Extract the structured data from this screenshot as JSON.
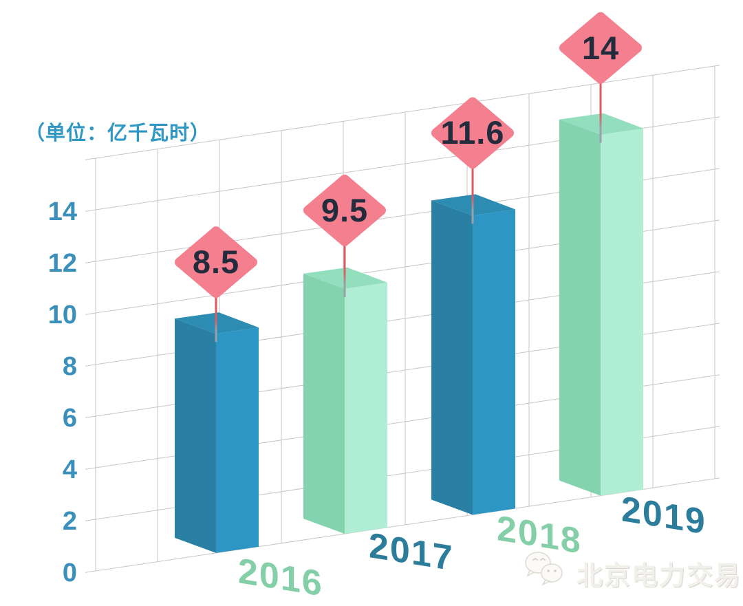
{
  "unit_label": "（单位：亿千瓦时）",
  "watermark": {
    "name": "北京电力交易中心",
    "icon": "wechat-icon"
  },
  "y_axis": {
    "ticks": [
      "14",
      "12",
      "10",
      "8",
      "6",
      "4",
      "2",
      "0"
    ]
  },
  "chart_data": {
    "type": "bar",
    "style": "isometric-3d",
    "title": "",
    "xlabel": "",
    "ylabel": "",
    "unit": "亿千瓦时",
    "categories": [
      "2016",
      "2017",
      "2018",
      "2019"
    ],
    "values": [
      8.5,
      9.5,
      11.6,
      14
    ],
    "value_labels": [
      "8.5",
      "9.5",
      "11.6",
      "14"
    ],
    "ylim": [
      0,
      16
    ],
    "y_ticks": [
      0,
      2,
      4,
      6,
      8,
      10,
      12,
      14
    ],
    "grid": "on",
    "legend": "none",
    "colors": {
      "bar_palette": {
        "blue": {
          "left": "#2A80A4",
          "right": "#2E96C4",
          "top": "#2D8CB2"
        },
        "mint": {
          "left": "#83D3AF",
          "right": "#AFEED4",
          "top": "#93DFBD"
        }
      },
      "bar_color_order": [
        "blue",
        "mint",
        "blue",
        "mint"
      ],
      "year_label_colors": [
        "#84CFA8",
        "#2C7C9C",
        "#84CFA8",
        "#2C7C9C"
      ],
      "diamond_fill": "#F4808F",
      "diamond_text_color": "#232C3D",
      "pin_top_color": "#DD5A62",
      "pin_bottom_color": "#9AA0A6",
      "axis_text_color": "#3A90BA",
      "unit_text_color": "#2F97C4",
      "grid_color": "#C5C5C5"
    }
  }
}
